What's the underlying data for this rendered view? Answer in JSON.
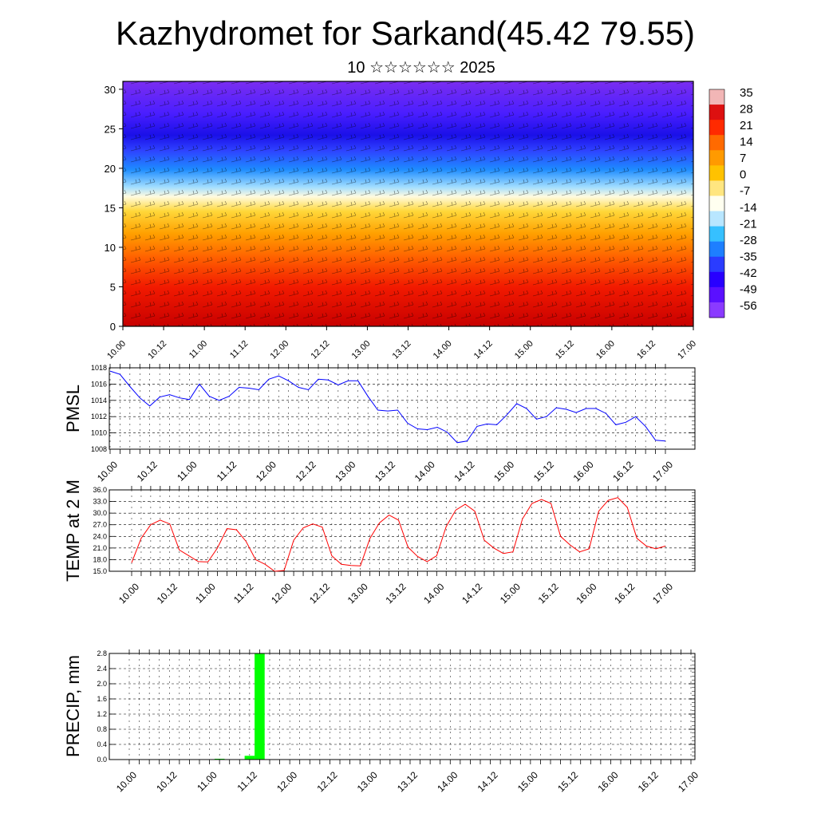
{
  "header": {
    "title": "Kazhydromet for Sarkand(45.42 79.55)",
    "subtitle": "10 ☆☆☆☆☆☆ 2025"
  },
  "time_ticks": [
    "10.00",
    "10.12",
    "11.00",
    "11.12",
    "12.00",
    "12.12",
    "13.00",
    "13.12",
    "14.00",
    "14.12",
    "15.00",
    "15.12",
    "16.00",
    "16.12",
    "17.00"
  ],
  "colors": {
    "pmsl_line": "#0000ff",
    "temp_line": "#ff0000",
    "precip_bar": "#00ff00"
  },
  "chart_data": [
    {
      "type": "heatmap",
      "name": "vertical temperature/wind cross-section",
      "x_ticks": [
        "10.00",
        "10.12",
        "11.00",
        "11.12",
        "12.00",
        "12.12",
        "13.00",
        "13.12",
        "14.00",
        "14.12",
        "15.00",
        "15.12",
        "16.00",
        "16.12",
        "17.00"
      ],
      "y_ticks": [
        "0",
        "5",
        "10",
        "15",
        "20",
        "25",
        "30"
      ],
      "ylim": [
        0,
        31
      ],
      "colorbar_labels": [
        "35",
        "28",
        "21",
        "14",
        "7",
        "0",
        "-7",
        "-14",
        "-21",
        "-28",
        "-35",
        "-42",
        "-49",
        "-56"
      ],
      "colorbar_colors": [
        "#f2b6b6",
        "#dd1010",
        "#ff2a00",
        "#ff6a00",
        "#ff9a00",
        "#ffc200",
        "#ffe680",
        "#fffff0",
        "#b8e6ff",
        "#36c0ff",
        "#1e7fff",
        "#2a3cff",
        "#2800ff",
        "#5a10ff",
        "#8a3aff"
      ]
    },
    {
      "type": "line",
      "ylabel": "PMSL",
      "x_ticks": [
        "10.00",
        "10.12",
        "11.00",
        "11.12",
        "12.00",
        "12.12",
        "13.00",
        "13.12",
        "14.00",
        "14.12",
        "15.00",
        "15.12",
        "16.00",
        "16.12",
        "17.00"
      ],
      "y_ticks": [
        "1008",
        "1010",
        "1012",
        "1014",
        "1016",
        "1018"
      ],
      "ylim": [
        1008,
        1018
      ],
      "values": [
        1017.6,
        1017.2,
        1015.7,
        1014.3,
        1013.3,
        1014.4,
        1014.7,
        1014.3,
        1014.1,
        1016.0,
        1014.5,
        1014.0,
        1014.5,
        1015.6,
        1015.5,
        1015.3,
        1016.6,
        1017.0,
        1016.4,
        1015.6,
        1015.3,
        1016.6,
        1016.5,
        1015.9,
        1016.4,
        1016.4,
        1014.5,
        1012.8,
        1012.7,
        1012.8,
        1011.2,
        1010.5,
        1010.4,
        1010.7,
        1010.1,
        1008.8,
        1009.0,
        1010.8,
        1011.1,
        1011.0,
        1012.2,
        1013.6,
        1013.0,
        1011.7,
        1012.0,
        1013.1,
        1012.9,
        1012.5,
        1013.0,
        1013.0,
        1012.4,
        1011.0,
        1011.3,
        1012.0,
        1010.8,
        1009.1,
        1009.0
      ]
    },
    {
      "type": "line",
      "ylabel": "TEMP at 2 M",
      "x_ticks": [
        "10.00",
        "10.12",
        "11.00",
        "11.12",
        "12.00",
        "12.12",
        "13.00",
        "13.12",
        "14.00",
        "14.12",
        "15.00",
        "15.12",
        "16.00",
        "16.12",
        "17.00"
      ],
      "y_ticks": [
        "15.0",
        "18.0",
        "21.0",
        "24.0",
        "27.0",
        "30.0",
        "33.0",
        "36.0"
      ],
      "ylim": [
        15,
        36
      ],
      "values": [
        17.2,
        23.5,
        27.0,
        28.2,
        27.2,
        20.5,
        19.0,
        17.5,
        17.4,
        21.0,
        26.0,
        25.7,
        22.7,
        18.0,
        16.8,
        15.0,
        15.2,
        23.0,
        26.2,
        27.2,
        26.4,
        19.0,
        16.8,
        16.5,
        16.4,
        23.5,
        27.5,
        29.5,
        28.2,
        21.2,
        18.8,
        17.5,
        19.0,
        26.5,
        30.8,
        32.3,
        30.5,
        23.0,
        21.0,
        19.6,
        20.0,
        28.5,
        32.5,
        33.5,
        32.5,
        24.0,
        21.8,
        20.0,
        20.8,
        30.5,
        33.3,
        34.0,
        31.5,
        23.5,
        21.5,
        20.8,
        21.5
      ]
    },
    {
      "type": "bar",
      "ylabel": "PRECIP, mm",
      "x_ticks": [
        "10.00",
        "10.12",
        "11.00",
        "11.12",
        "12.00",
        "12.12",
        "13.00",
        "13.12",
        "14.00",
        "14.12",
        "15.00",
        "15.12",
        "16.00",
        "16.12",
        "17.00"
      ],
      "y_ticks": [
        "0.0",
        "0.4",
        "0.8",
        "1.2",
        "1.6",
        "2.0",
        "2.4",
        "2.8"
      ],
      "ylim": [
        0,
        2.8
      ],
      "values": [
        0,
        0,
        0,
        0,
        0,
        0,
        0,
        0,
        0,
        0.02,
        0,
        0,
        0.1,
        2.8,
        0,
        0,
        0,
        0,
        0,
        0,
        0,
        0,
        0,
        0,
        0,
        0,
        0,
        0,
        0,
        0,
        0,
        0,
        0,
        0,
        0,
        0,
        0,
        0,
        0,
        0,
        0,
        0,
        0,
        0,
        0,
        0,
        0,
        0,
        0,
        0,
        0,
        0,
        0,
        0,
        0,
        0,
        0
      ]
    }
  ]
}
